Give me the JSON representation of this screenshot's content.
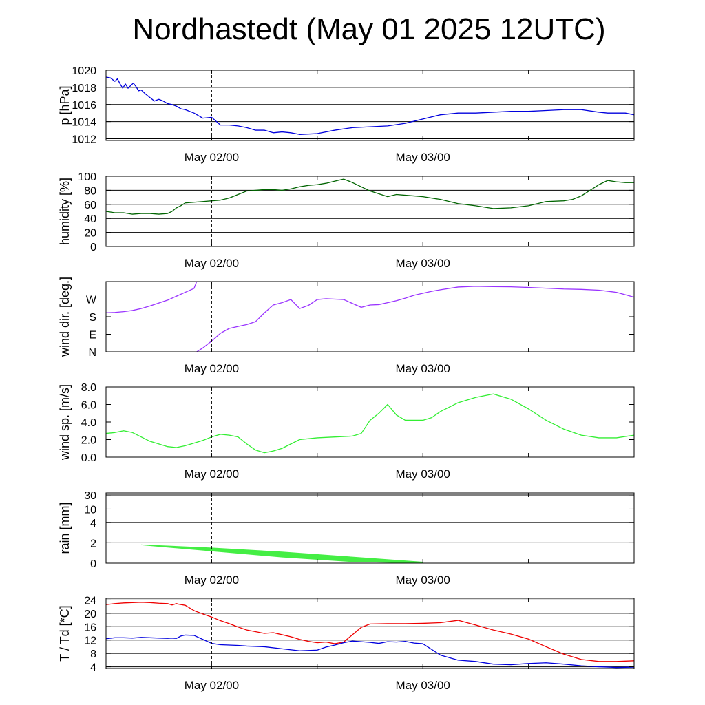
{
  "title": "Nordhastedt (May 01 2025 12UTC)",
  "time_axis": {
    "tick_labels": [
      "May 02/00",
      "May 03/00"
    ],
    "range_hours": [
      0,
      60
    ],
    "label_hours": [
      12,
      36
    ],
    "minor_tick_hours": [
      12,
      24,
      36,
      48,
      60
    ]
  },
  "chart_data": [
    {
      "type": "line",
      "ylabel": "p [hPa]",
      "ylim": [
        1011.8,
        1020
      ],
      "yticks": [
        1012,
        1014,
        1016,
        1018,
        1020
      ],
      "ytick_labels": [
        "1012",
        "1014",
        "1016",
        "1018",
        "1020"
      ],
      "grid": true,
      "series": [
        {
          "color": "#0000dd",
          "x": [
            0,
            0.5,
            1,
            1.3,
            1.6,
            1.9,
            2.2,
            2.5,
            2.8,
            3.1,
            3.4,
            3.7,
            4,
            4.4,
            5,
            5.5,
            6,
            6.5,
            7,
            7.5,
            8,
            8.5,
            9,
            10,
            11,
            12,
            13,
            14,
            15,
            16,
            17,
            18,
            19,
            20,
            21,
            22,
            24,
            26,
            28,
            30,
            32,
            34,
            36,
            38,
            40,
            42,
            44,
            46,
            48,
            50,
            52,
            54,
            56,
            57,
            58,
            59,
            60
          ],
          "y": [
            1019.2,
            1019.1,
            1018.7,
            1019.0,
            1018.4,
            1017.9,
            1018.4,
            1017.9,
            1018.2,
            1018.5,
            1018.1,
            1017.6,
            1017.7,
            1017.3,
            1016.8,
            1016.4,
            1016.6,
            1016.4,
            1016.1,
            1016.0,
            1015.8,
            1015.5,
            1015.4,
            1015.0,
            1014.4,
            1014.5,
            1013.6,
            1013.6,
            1013.5,
            1013.3,
            1013.0,
            1013.0,
            1012.7,
            1012.8,
            1012.7,
            1012.5,
            1012.6,
            1013.0,
            1013.3,
            1013.4,
            1013.5,
            1013.8,
            1014.3,
            1014.8,
            1015.0,
            1015.0,
            1015.1,
            1015.2,
            1015.2,
            1015.3,
            1015.4,
            1015.4,
            1015.1,
            1015.0,
            1015.0,
            1015.0,
            1014.8
          ]
        }
      ]
    },
    {
      "type": "line",
      "ylabel": "humidity [%]",
      "ylim": [
        0,
        100
      ],
      "yticks": [
        0,
        20,
        40,
        60,
        80,
        100
      ],
      "ytick_labels": [
        "0",
        "20",
        "40",
        "60",
        "80",
        "100"
      ],
      "grid": true,
      "series": [
        {
          "color": "#006400",
          "x": [
            0,
            1,
            2,
            3,
            4,
            5,
            6,
            7,
            7.5,
            8,
            8.5,
            9,
            10,
            11,
            12,
            13,
            14,
            15,
            16,
            18,
            19,
            20,
            21,
            22,
            23,
            24,
            25,
            26,
            27,
            28,
            29,
            30,
            31,
            32,
            33,
            34,
            36,
            38,
            40,
            42,
            44,
            46,
            48,
            50,
            52,
            53,
            54,
            55,
            56,
            57,
            58,
            59,
            60
          ],
          "y": [
            50,
            48,
            48,
            46,
            47,
            47,
            46,
            47,
            50,
            55,
            58,
            62,
            63,
            64,
            65,
            66,
            69,
            74,
            79,
            81,
            81,
            80,
            82,
            85,
            87,
            88,
            90,
            93,
            96,
            91,
            85,
            79,
            75,
            71,
            74,
            73,
            71,
            67,
            61,
            58,
            54,
            55,
            58,
            64,
            65,
            67,
            72,
            80,
            88,
            94,
            92,
            91,
            91
          ]
        }
      ]
    },
    {
      "type": "line",
      "ylabel": "wind dir. [deg.]",
      "ylim": [
        0,
        360
      ],
      "yticks": [
        0,
        90,
        180,
        270
      ],
      "ytick_labels": [
        "N",
        "E",
        "S",
        "W"
      ],
      "grid": false,
      "series": [
        {
          "color": "#9933ff",
          "x": [
            0,
            1,
            2,
            3,
            4,
            5,
            6,
            7,
            8,
            9,
            10,
            10.3
          ],
          "y": [
            200,
            202,
            206,
            212,
            222,
            235,
            250,
            265,
            285,
            305,
            325,
            360
          ]
        },
        {
          "color": "#9933ff",
          "x": [
            10.3,
            11,
            12,
            13,
            14,
            15,
            16,
            17,
            18,
            19,
            20,
            21,
            22,
            23,
            24,
            25,
            26,
            27,
            28,
            29,
            30,
            31,
            32,
            33,
            34,
            35,
            36,
            37,
            38,
            40,
            42,
            44,
            46,
            48,
            50,
            52,
            54,
            56,
            58,
            60
          ],
          "y": [
            0,
            20,
            55,
            95,
            120,
            130,
            140,
            155,
            200,
            240,
            252,
            268,
            222,
            238,
            268,
            272,
            270,
            268,
            248,
            228,
            240,
            242,
            252,
            262,
            275,
            290,
            300,
            310,
            318,
            332,
            336,
            334,
            333,
            330,
            326,
            322,
            320,
            316,
            305,
            280
          ]
        }
      ]
    },
    {
      "type": "line",
      "ylabel": "wind sp. [m/s]",
      "ylim": [
        0,
        8
      ],
      "yticks": [
        0,
        2,
        4,
        6,
        8
      ],
      "ytick_labels": [
        "0.0",
        "2.0",
        "4.0",
        "6.0",
        "8.0"
      ],
      "grid": false,
      "series": [
        {
          "color": "#33ee33",
          "x": [
            0,
            1,
            2,
            3,
            4,
            5,
            6,
            7,
            8,
            9,
            10,
            11,
            12,
            13,
            14,
            15,
            16,
            17,
            18,
            19,
            20,
            22,
            24,
            26,
            28,
            29,
            30,
            31,
            32,
            33,
            34,
            35,
            36,
            37,
            38,
            40,
            42,
            44,
            46,
            48,
            50,
            52,
            54,
            56,
            58,
            60
          ],
          "y": [
            2.7,
            2.8,
            3.0,
            2.8,
            2.3,
            1.8,
            1.5,
            1.2,
            1.1,
            1.3,
            1.6,
            1.9,
            2.3,
            2.6,
            2.5,
            2.3,
            1.5,
            0.8,
            0.5,
            0.7,
            1.0,
            2.0,
            2.2,
            2.3,
            2.4,
            2.7,
            4.2,
            5.0,
            6.0,
            4.8,
            4.2,
            4.2,
            4.2,
            4.5,
            5.2,
            6.2,
            6.8,
            7.2,
            6.6,
            5.5,
            4.2,
            3.2,
            2.5,
            2.2,
            2.2,
            2.5
          ]
        }
      ]
    },
    {
      "type": "area",
      "ylabel": "rain [mm]",
      "ylim": [
        0,
        30
      ],
      "yticks": [
        0,
        2,
        4,
        10,
        30
      ],
      "ytick_labels": [
        "0",
        "2",
        "4",
        "10",
        "30"
      ],
      "scale": "non-linear",
      "grid": true,
      "series": [
        {
          "color": "#44ee44",
          "x": [
            4,
            12,
            20,
            28,
            36
          ],
          "y_top": [
            1.8,
            1.5,
            1.1,
            0.6,
            0.1
          ],
          "y_bottom": [
            1.8,
            1.2,
            0.6,
            0.15,
            0.0
          ]
        }
      ]
    },
    {
      "type": "line",
      "ylabel": "T / Td [*C]",
      "ylim": [
        3.5,
        24.5
      ],
      "yticks": [
        4,
        8,
        12,
        16,
        20,
        24
      ],
      "ytick_labels": [
        "4",
        "8",
        "12",
        "16",
        "20",
        "24"
      ],
      "grid": true,
      "series": [
        {
          "color": "#ee0000",
          "x": [
            0,
            1,
            2,
            3,
            4,
            5,
            6,
            7,
            7.5,
            8,
            8.3,
            9,
            10,
            11,
            12,
            13,
            14,
            15,
            16,
            18,
            19,
            20,
            21,
            22,
            23,
            24,
            25,
            26,
            27,
            28,
            29,
            30,
            32,
            34,
            36,
            38,
            40,
            42,
            44,
            46,
            48,
            50,
            52,
            54,
            56,
            58,
            60
          ],
          "y": [
            22.6,
            22.9,
            23.1,
            23.2,
            23.3,
            23.2,
            23.0,
            22.9,
            22.5,
            22.9,
            22.7,
            22.4,
            20.8,
            19.8,
            18.9,
            17.8,
            16.9,
            15.9,
            15.0,
            14.0,
            14.2,
            13.6,
            13.0,
            12.2,
            11.6,
            11.2,
            11.4,
            10.9,
            11.4,
            13.6,
            15.8,
            16.8,
            16.9,
            16.9,
            17.0,
            17.2,
            17.9,
            16.5,
            15.0,
            13.8,
            12.3,
            10.0,
            7.8,
            6.2,
            5.6,
            5.6,
            5.8
          ]
        },
        {
          "color": "#0000dd",
          "x": [
            0,
            1,
            2,
            3,
            4,
            5,
            6,
            7,
            7.5,
            8,
            8.5,
            9,
            10,
            11,
            12,
            13,
            14,
            15,
            16,
            18,
            20,
            22,
            24,
            25,
            26,
            27,
            28,
            29,
            30,
            31,
            32,
            33,
            34,
            35,
            36,
            38,
            40,
            42,
            44,
            46,
            48,
            50,
            52,
            54,
            56,
            58,
            60
          ],
          "y": [
            12.4,
            12.7,
            12.7,
            12.6,
            12.8,
            12.7,
            12.6,
            12.5,
            12.6,
            12.5,
            13.2,
            13.5,
            13.4,
            12.2,
            11.0,
            10.6,
            10.5,
            10.4,
            10.2,
            10.0,
            9.4,
            8.8,
            9.0,
            9.9,
            10.5,
            11.2,
            11.7,
            11.5,
            11.3,
            11.0,
            11.5,
            11.4,
            11.6,
            11.1,
            10.9,
            7.5,
            6.0,
            5.6,
            4.8,
            4.6,
            5.0,
            5.2,
            4.8,
            4.3,
            4.0,
            3.8,
            3.9
          ]
        }
      ]
    }
  ]
}
